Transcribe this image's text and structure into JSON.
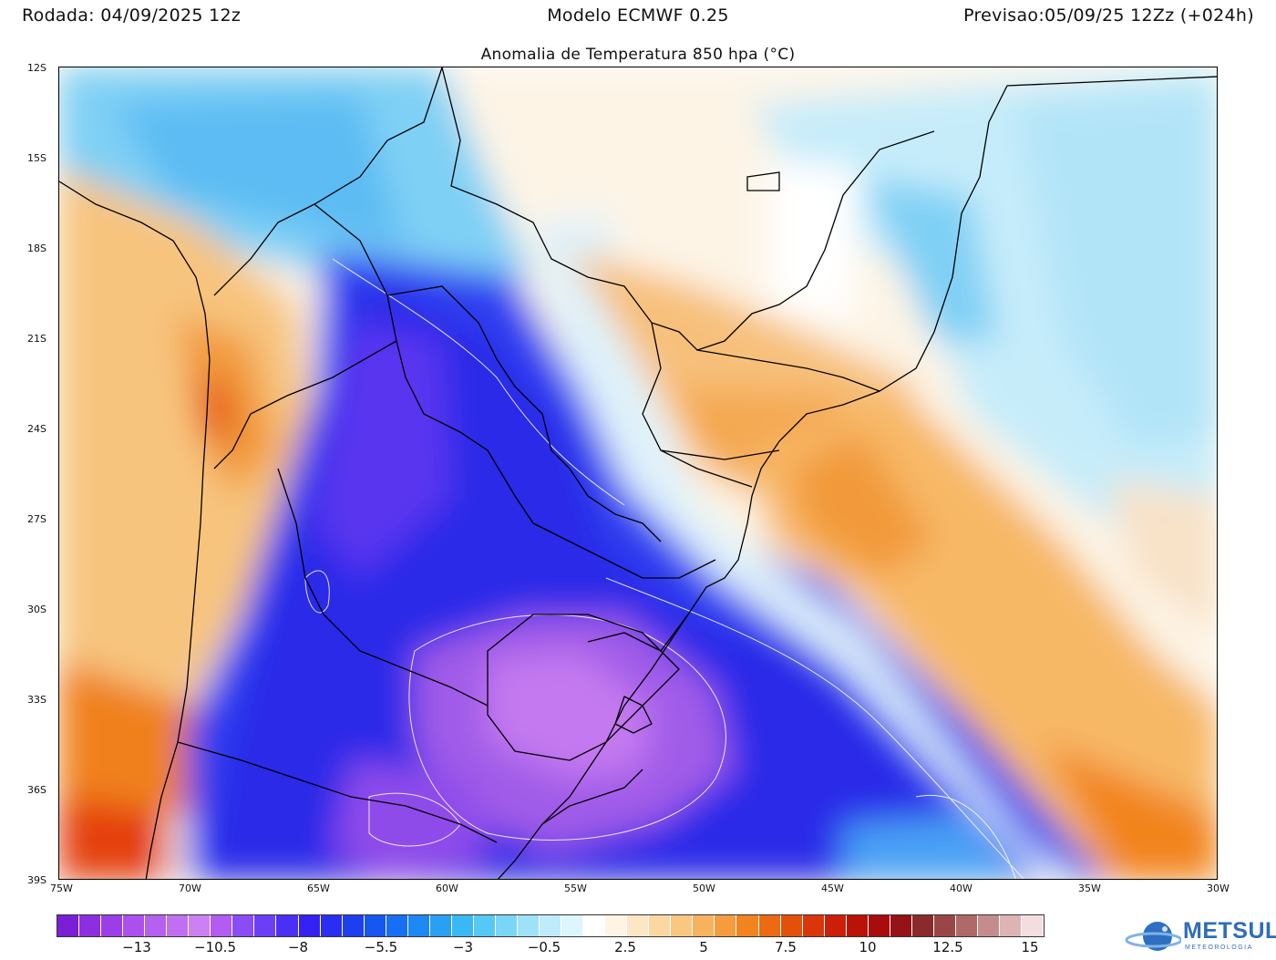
{
  "header": {
    "run": "Rodada: 04/09/2025 12z",
    "model": "Modelo ECMWF 0.25",
    "forecast": "Previsao:05/09/25 12Zz (+024h)",
    "title": "Anomalia de Temperatura 850 hpa (°C)"
  },
  "axes": {
    "lat_labels": [
      "12S",
      "15S",
      "18S",
      "21S",
      "24S",
      "27S",
      "30S",
      "33S",
      "36S",
      "39S"
    ],
    "lon_labels": [
      "75W",
      "70W",
      "65W",
      "60W",
      "55W",
      "50W",
      "45W",
      "40W",
      "35W",
      "30W"
    ]
  },
  "map": {
    "extent": {
      "lon_min": -75,
      "lon_max": -30,
      "lat_min": -39,
      "lat_max": -12
    },
    "variable": "850 hPa temperature anomaly",
    "units": "°C",
    "features": [
      {
        "name": "cold-core-anomaly",
        "lon": -55,
        "lat": -33,
        "anomaly": -12
      },
      {
        "name": "cold-band-anomaly",
        "lon": -63,
        "lat": -24,
        "anomaly": -9
      },
      {
        "name": "warm-anomaly-southeast-brazil",
        "lon": -45,
        "lat": -26,
        "anomaly": 4
      },
      {
        "name": "warm-anomaly-andes",
        "lon": -68,
        "lat": -23,
        "anomaly": 6
      },
      {
        "name": "warm-anomaly-chile-south",
        "lon": -72,
        "lat": -37,
        "anomaly": 8
      },
      {
        "name": "warm-band-atlantic",
        "lon": -37,
        "lat": -35,
        "anomaly": 4
      }
    ]
  },
  "colorbar": {
    "labels": [
      "−13",
      "−10.5",
      "−8",
      "−5.5",
      "−3",
      "−0.5",
      "2.5",
      "5",
      "7.5",
      "10",
      "12.5",
      "15"
    ],
    "colors": [
      "#7a1fd6",
      "#8d2ee0",
      "#9c3de8",
      "#ab4fee",
      "#b560f0",
      "#c06ff2",
      "#cc80f4",
      "#b25cf2",
      "#8a4cf7",
      "#6b3ff8",
      "#4a30f5",
      "#3522f2",
      "#2a2ef0",
      "#1e3ff0",
      "#1657f2",
      "#166ff5",
      "#1e88f5",
      "#2aa0f5",
      "#3ab8f5",
      "#55c8f6",
      "#79d6f7",
      "#9ee2f8",
      "#bfecfa",
      "#ddf5fc",
      "#ffffff",
      "#fff4e4",
      "#fde6c4",
      "#fbd8a2",
      "#f9c780",
      "#f7b25e",
      "#f59c3d",
      "#f2841f",
      "#ec6a12",
      "#e4500c",
      "#da360a",
      "#cc1f08",
      "#bb1208",
      "#a80c0c",
      "#951216",
      "#8a2a2a",
      "#9b4646",
      "#b06868",
      "#c48c8c",
      "#dcb4b4",
      "#f2dede"
    ]
  },
  "logo": {
    "word": "METSUL",
    "sub": "METEOROLOGIA"
  }
}
